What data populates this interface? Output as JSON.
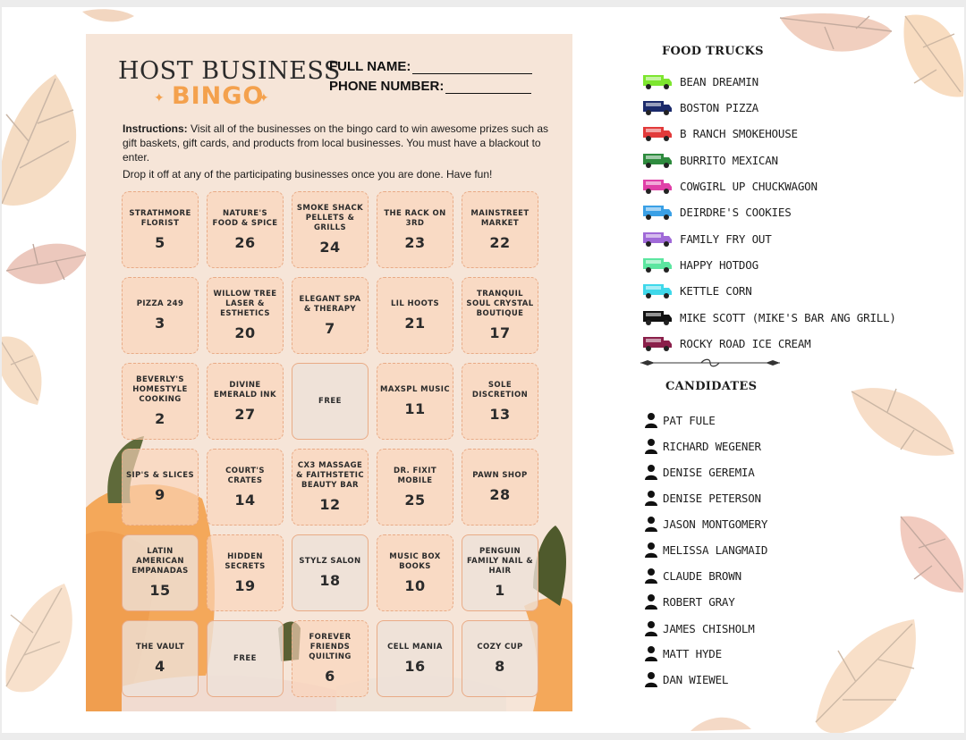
{
  "card": {
    "title_line1": "HOST BUSINESS",
    "title_line2": "BINGO",
    "full_name_label": "FULL NAME:",
    "phone_label": "PHONE NUMBER:",
    "instructions_bold": "Instructions:",
    "instructions_text": " Visit all of the businesses on the bingo card to win awesome prizes such as gift baskets, gift cards, and products from local businesses. You must have a blackout to enter.",
    "dropoff_text": "Drop it off at any of the participating businesses  once you are done. Have fun!",
    "rows": [
      [
        {
          "name": "STRATHMORE FLORIST",
          "number": "5",
          "style": "dash"
        },
        {
          "name": "NATURE'S FOOD & SPICE",
          "number": "26",
          "style": "dash"
        },
        {
          "name": "SMOKE SHACK PELLETS & GRILLS",
          "number": "24",
          "style": "dash"
        },
        {
          "name": "THE RACK ON 3RD",
          "number": "23",
          "style": "dash"
        },
        {
          "name": "MAINSTREET MARKET",
          "number": "22",
          "style": "dash"
        }
      ],
      [
        {
          "name": "PIZZA 249",
          "number": "3",
          "style": "dash"
        },
        {
          "name": "WILLOW TREE LASER & ESTHETICS",
          "number": "20",
          "style": "dash"
        },
        {
          "name": "ELEGANT SPA & THERAPY",
          "number": "7",
          "style": "dash"
        },
        {
          "name": "LIL HOOTS",
          "number": "21",
          "style": "dash"
        },
        {
          "name": "TRANQUIL SOUL CRYSTAL BOUTIQUE",
          "number": "17",
          "style": "dash"
        }
      ],
      [
        {
          "name": "BEVERLY'S HOMESTYLE COOKING",
          "number": "2",
          "style": "dash"
        },
        {
          "name": "DIVINE EMERALD INK",
          "number": "27",
          "style": "dash"
        },
        {
          "name": "FREE",
          "number": "",
          "style": "solid"
        },
        {
          "name": "MAXSPL MUSIC",
          "number": "11",
          "style": "dash"
        },
        {
          "name": "SOLE DISCRETION",
          "number": "13",
          "style": "dash"
        }
      ],
      [
        {
          "name": "SIP'S & SLICES",
          "number": "9",
          "style": "dash"
        },
        {
          "name": "COURT'S CRATES",
          "number": "14",
          "style": "dash"
        },
        {
          "name": "CX3 MASSAGE & FAITHSTETIC BEAUTY BAR",
          "number": "12",
          "style": "dash"
        },
        {
          "name": "DR. FIXIT MOBILE",
          "number": "25",
          "style": "dash"
        },
        {
          "name": "PAWN SHOP",
          "number": "28",
          "style": "dash"
        }
      ],
      [
        {
          "name": "LATIN AMERICAN EMPANADAS",
          "number": "15",
          "style": "solid"
        },
        {
          "name": "HIDDEN SECRETS",
          "number": "19",
          "style": "dash"
        },
        {
          "name": "STYLZ SALON",
          "number": "18",
          "style": "solid"
        },
        {
          "name": "MUSIC BOX BOOKS",
          "number": "10",
          "style": "dash"
        },
        {
          "name": "PENGUIN FAMILY NAIL & HAIR",
          "number": "1",
          "style": "solid"
        }
      ],
      [
        {
          "name": "THE VAULT",
          "number": "4",
          "style": "solid"
        },
        {
          "name": "FREE",
          "number": "",
          "style": "solid"
        },
        {
          "name": "FOREVER FRIENDS QUILTING",
          "number": "6",
          "style": "dash"
        },
        {
          "name": "CELL MANIA",
          "number": "16",
          "style": "solid"
        },
        {
          "name": "COZY CUP",
          "number": "8",
          "style": "solid"
        }
      ]
    ]
  },
  "food_trucks": {
    "heading": "FOOD TRUCKS",
    "items": [
      {
        "name": "BEAN DREAMIN",
        "color": "#7de62f"
      },
      {
        "name": "BOSTON PIZZA",
        "color": "#1b2a6b"
      },
      {
        "name": "B RANCH SMOKEHOUSE",
        "color": "#e23a3a"
      },
      {
        "name": "BURRITO MEXICAN",
        "color": "#2e8b3e"
      },
      {
        "name": "COWGIRL UP CHUCKWAGON",
        "color": "#e040a8"
      },
      {
        "name": "DEIRDRE'S COOKIES",
        "color": "#3aa0e6"
      },
      {
        "name": "FAMILY FRY OUT",
        "color": "#a06ad8"
      },
      {
        "name": "HAPPY HOTDOG",
        "color": "#5ce6a0"
      },
      {
        "name": "KETTLE CORN",
        "color": "#3fd8ea"
      },
      {
        "name": "MIKE SCOTT (MIKE'S BAR ANG GRILL)",
        "color": "#111111"
      },
      {
        "name": "ROCKY ROAD ICE CREAM",
        "color": "#8a1f4a"
      }
    ]
  },
  "candidates": {
    "heading": "CANDIDATES",
    "items": [
      "PAT FULE",
      "RICHARD WEGENER",
      "DENISE GEREMIA",
      "DENISE PETERSON",
      "JASON MONTGOMERY",
      "MELISSA LANGMAID",
      "CLAUDE BROWN",
      "ROBERT GRAY",
      "JAMES CHISHOLM",
      "MATT HYDE",
      "DAN WIEWEL"
    ]
  }
}
